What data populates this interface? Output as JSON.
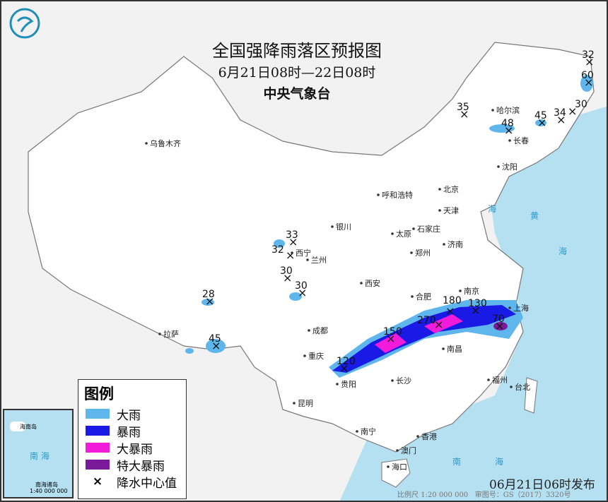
{
  "title": "全国强降雨落区预报图",
  "subtitle": "6月21日08时—22日08时",
  "agency": "中央气象台",
  "legend": {
    "title": "图例",
    "items": [
      {
        "label": "大雨",
        "color": "#5fb6ec"
      },
      {
        "label": "暴雨",
        "color": "#1a1ae6"
      },
      {
        "label": "大暴雨",
        "color": "#f21bd9"
      },
      {
        "label": "特大暴雨",
        "color": "#7a1a9a"
      },
      {
        "label": "降水中心值",
        "icon": "x-mark-icon"
      }
    ]
  },
  "rain_centers": [
    "32",
    "60",
    "35",
    "48",
    "45",
    "34",
    "30",
    "33",
    "32",
    "30",
    "30",
    "28",
    "45",
    "120",
    "150",
    "270",
    "180",
    "130",
    "70"
  ],
  "cities": [
    "乌鲁木齐",
    "呼和浩特",
    "北京",
    "天津",
    "哈尔滨",
    "长春",
    "沈阳",
    "银川",
    "西宁",
    "兰州",
    "太原",
    "石家庄",
    "济南",
    "郑州",
    "西安",
    "合肥",
    "南京",
    "上海",
    "成都",
    "重庆",
    "拉萨",
    "长沙",
    "南昌",
    "贵阳",
    "昆明",
    "南宁",
    "澳门",
    "香港",
    "海口",
    "福州",
    "台北"
  ],
  "seas": [
    "海",
    "黄",
    "海",
    "南",
    "海"
  ],
  "inset": {
    "sea": "南 海",
    "island": "海南岛",
    "label": "南海诸岛",
    "scale": "1:40 000 000"
  },
  "footer": {
    "issued": "06月21日06时发布",
    "scale": "比例尺 1:20 000 000",
    "map_no": "审图号：GS（2017）3320号"
  },
  "colors": {
    "sea": "#b5e0f2",
    "land": "#ffffff",
    "neighbor": "#f2f2f2"
  }
}
